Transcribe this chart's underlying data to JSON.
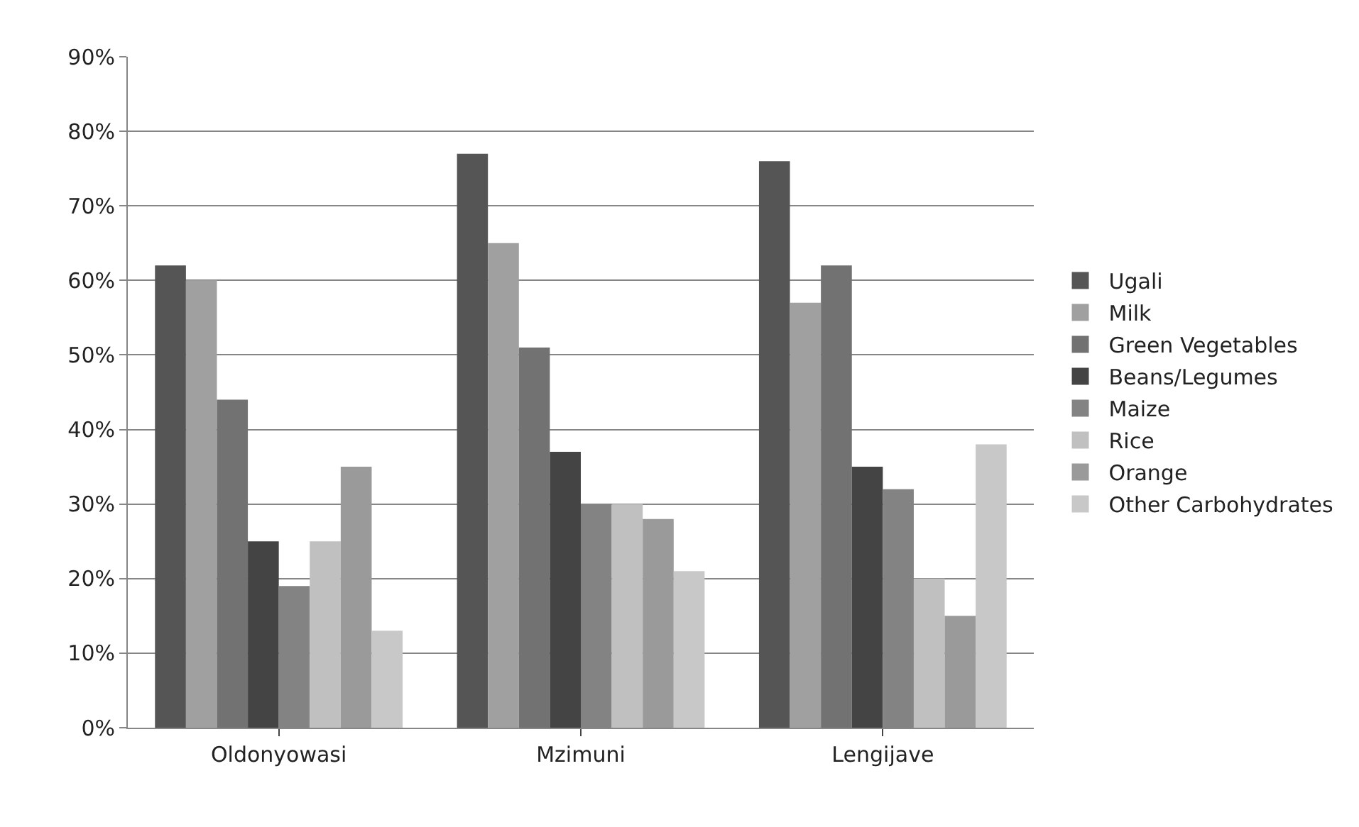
{
  "chart_data": {
    "type": "bar",
    "categories": [
      "Oldonyowasi",
      "Mzimuni",
      "Lengijave"
    ],
    "series": [
      {
        "name": "Ugali",
        "color": "#555555",
        "values": [
          62,
          77,
          76
        ]
      },
      {
        "name": "Milk",
        "color": "#a0a0a0",
        "values": [
          60,
          65,
          57
        ]
      },
      {
        "name": "Green Vegetables",
        "color": "#727272",
        "values": [
          44,
          51,
          62
        ]
      },
      {
        "name": "Beans/Legumes",
        "color": "#444444",
        "values": [
          25,
          37,
          35
        ]
      },
      {
        "name": "Maize",
        "color": "#838383",
        "values": [
          19,
          30,
          32
        ]
      },
      {
        "name": "Rice",
        "color": "#c0c0c0",
        "values": [
          25,
          30,
          20
        ]
      },
      {
        "name": "Orange",
        "color": "#9a9a9a",
        "values": [
          35,
          28,
          15
        ]
      },
      {
        "name": "Other Carbohydrates",
        "color": "#c8c8c8",
        "values": [
          13,
          21,
          38
        ]
      }
    ],
    "ylim": [
      0,
      90
    ],
    "yticks": [
      {
        "value": 0,
        "label": "0%"
      },
      {
        "value": 10,
        "label": "10%"
      },
      {
        "value": 20,
        "label": "20%"
      },
      {
        "value": 30,
        "label": "30%"
      },
      {
        "value": 40,
        "label": "40%"
      },
      {
        "value": 50,
        "label": "50%"
      },
      {
        "value": 60,
        "label": "60%"
      },
      {
        "value": 70,
        "label": "70%"
      },
      {
        "value": 80,
        "label": "80%"
      },
      {
        "value": 90,
        "label": "90%"
      }
    ],
    "grid": "y",
    "legend": "right"
  }
}
